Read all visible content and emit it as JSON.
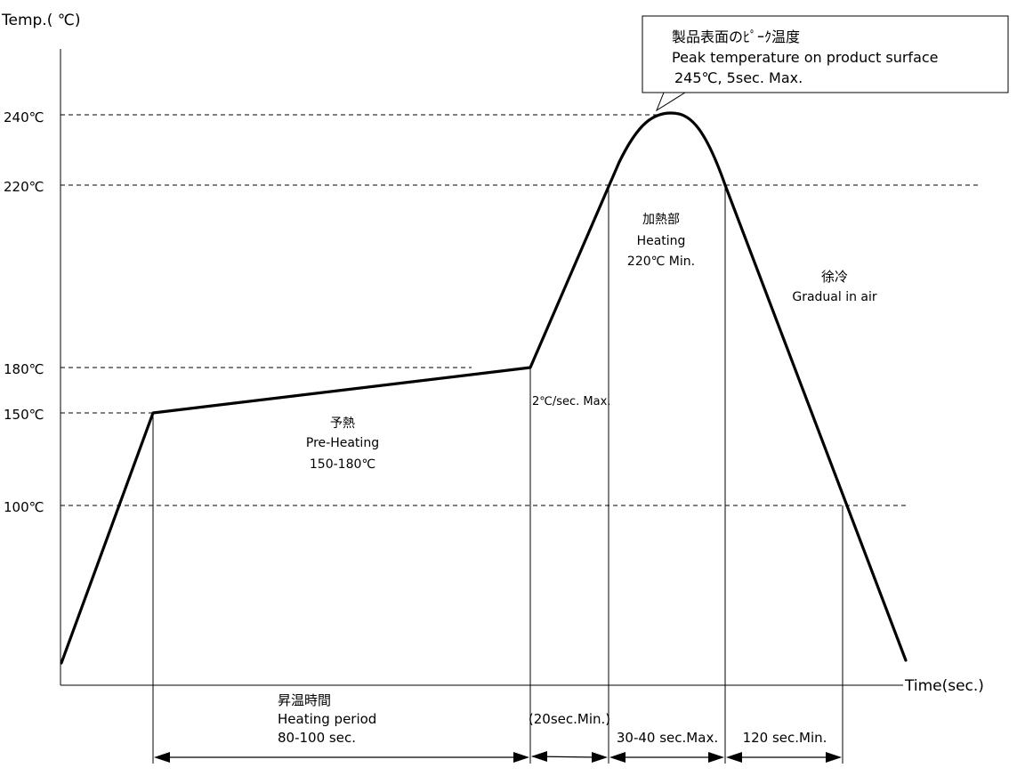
{
  "axis": {
    "y_title": "Temp.( ℃)",
    "x_title": "Time(sec.)"
  },
  "temperature_labels": [
    "240℃",
    "220℃",
    "180℃",
    "150℃",
    "100℃"
  ],
  "callout": {
    "line1": "製品表面のﾋﾟｰｸ温度",
    "line2": "Peak temperature on product surface",
    "line3": "245℃, 5sec. Max."
  },
  "zones": {
    "preheat": {
      "jp": "予熱",
      "en": "Pre-Heating",
      "range": "150-180℃"
    },
    "heating": {
      "jp": "加熱部",
      "en": "Heating",
      "range": "220℃ Min."
    },
    "cooling": {
      "jp": "徐冷",
      "en": "Gradual in air"
    }
  },
  "ramp_rate": "2℃/sec. Max.",
  "durations": {
    "period_jp": "昇温時間",
    "period_en": "Heating period",
    "period_value": "80-100 sec.",
    "transition": "(20sec.Min.)",
    "peak": "30-40 sec.Max.",
    "cool": "120 sec.Min."
  }
}
